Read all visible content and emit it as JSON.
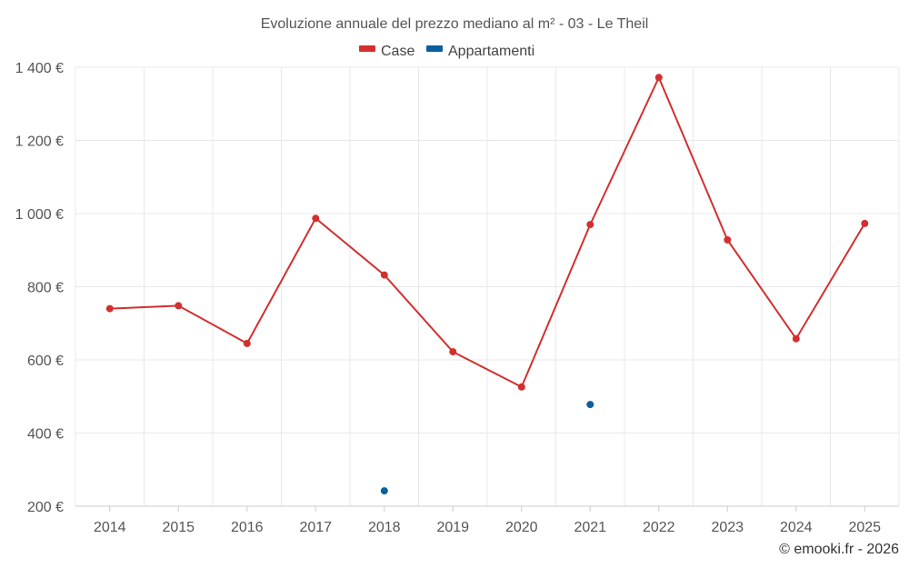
{
  "chart_data": {
    "type": "line",
    "title": "Evoluzione annuale del prezzo mediano al m² - 03 - Le Theil",
    "categories": [
      "2014",
      "2015",
      "2016",
      "2017",
      "2018",
      "2019",
      "2020",
      "2021",
      "2022",
      "2023",
      "2024",
      "2025"
    ],
    "series": [
      {
        "name": "Case",
        "color": "#d32f2f",
        "values": [
          740,
          748,
          645,
          987,
          832,
          622,
          526,
          970,
          1372,
          928,
          658,
          973
        ]
      },
      {
        "name": "Appartamenti",
        "color": "#0a5f9e",
        "values": [
          null,
          null,
          null,
          null,
          242,
          null,
          null,
          478,
          null,
          null,
          null,
          null
        ]
      }
    ],
    "ylim": [
      200,
      1400
    ],
    "yticks": [
      200,
      400,
      600,
      800,
      1000,
      1200,
      1400
    ],
    "ytick_labels": [
      "200 €",
      "400 €",
      "600 €",
      "800 €",
      "1 000 €",
      "1 200 €",
      "1 400 €"
    ],
    "xlabel": "",
    "ylabel": "",
    "grid": true,
    "legend_position": "top-center",
    "credit": "© emooki.fr - 2026"
  }
}
